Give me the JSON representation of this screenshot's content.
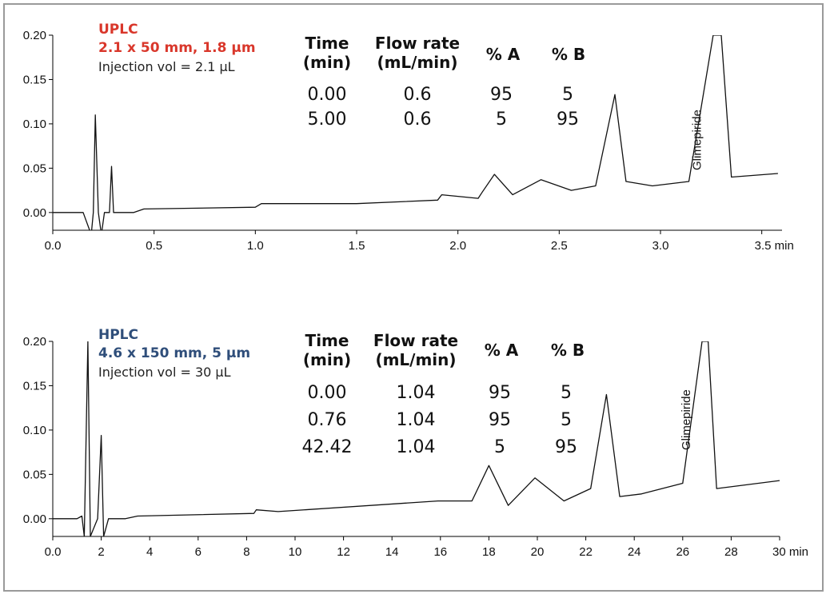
{
  "chart_data": [
    {
      "type": "line",
      "title": "UPLC",
      "subtitle": "2.1 x 50 mm, 1.8 µm",
      "injection": "Injection vol = 2.1 µL",
      "title_color": "#d9372b",
      "x_unit": "min",
      "xlim": [
        0,
        3.6
      ],
      "ylim": [
        -0.02,
        0.2
      ],
      "x_ticks": [
        "0.0",
        "0.5",
        "1.0",
        "1.5",
        "2.0",
        "2.5",
        "3.0",
        "3.5"
      ],
      "y_ticks": [
        "0.00",
        "0.05",
        "0.10",
        "0.15",
        "0.20"
      ],
      "annotation": {
        "text": "Glimepiride",
        "x": 3.2
      },
      "gradient_table": {
        "headers": [
          [
            "Time",
            "(min)"
          ],
          [
            "Flow rate",
            "(mL/min)"
          ],
          [
            "% A",
            ""
          ],
          [
            "% B",
            ""
          ]
        ],
        "rows": [
          [
            "0.00",
            "0.6",
            "95",
            "5"
          ],
          [
            "5.00",
            "0.6",
            "5",
            "95"
          ]
        ]
      },
      "series": [
        {
          "values": [
            [
              0.0,
              0.0
            ],
            [
              0.15,
              0.0
            ],
            [
              0.19,
              -0.025
            ],
            [
              0.2,
              0.0
            ],
            [
              0.21,
              0.11
            ],
            [
              0.225,
              0.0
            ],
            [
              0.24,
              -0.025
            ],
            [
              0.255,
              0.0
            ],
            [
              0.28,
              0.0
            ],
            [
              0.29,
              0.052
            ],
            [
              0.3,
              0.0
            ],
            [
              0.33,
              0.0
            ],
            [
              0.4,
              0.0
            ],
            [
              0.45,
              0.004
            ],
            [
              1.0,
              0.006
            ],
            [
              1.03,
              0.01
            ],
            [
              1.5,
              0.01
            ],
            [
              1.9,
              0.014
            ],
            [
              1.92,
              0.02
            ],
            [
              2.1,
              0.016
            ],
            [
              2.12,
              0.023
            ],
            [
              2.18,
              0.043
            ],
            [
              2.27,
              0.02
            ],
            [
              2.41,
              0.037
            ],
            [
              2.56,
              0.025
            ],
            [
              2.68,
              0.03
            ],
            [
              2.775,
              0.133
            ],
            [
              2.83,
              0.035
            ],
            [
              2.96,
              0.03
            ],
            [
              3.14,
              0.035
            ],
            [
              3.26,
              0.2
            ],
            [
              3.3,
              0.2
            ],
            [
              3.35,
              0.04
            ],
            [
              3.58,
              0.044
            ]
          ]
        }
      ]
    },
    {
      "type": "line",
      "title": "HPLC",
      "subtitle": "4.6 x 150 mm, 5 µm",
      "injection": "Injection vol = 30 µL",
      "title_color": "#2f4e7a",
      "x_unit": "min",
      "xlim": [
        0,
        30
      ],
      "ylim": [
        -0.02,
        0.2
      ],
      "x_ticks": [
        "0.0",
        "2",
        "4",
        "6",
        "8",
        "10",
        "12",
        "14",
        "16",
        "18",
        "20",
        "22",
        "24",
        "26",
        "28",
        "30"
      ],
      "y_ticks": [
        "0.00",
        "0.05",
        "0.10",
        "0.15",
        "0.20"
      ],
      "annotation": {
        "text": "Glimepiride",
        "x": 26.3
      },
      "gradient_table": {
        "headers": [
          [
            "Time",
            "(min)"
          ],
          [
            "Flow rate",
            "(mL/min)"
          ],
          [
            "% A",
            ""
          ],
          [
            "% B",
            ""
          ]
        ],
        "rows": [
          [
            "0.00",
            "1.04",
            "95",
            "5"
          ],
          [
            "0.76",
            "1.04",
            "95",
            "5"
          ],
          [
            "42.42",
            "1.04",
            "5",
            "95"
          ]
        ]
      },
      "series": [
        {
          "values": [
            [
              0.0,
              0.0
            ],
            [
              1.0,
              0.0
            ],
            [
              1.2,
              0.003
            ],
            [
              1.3,
              -0.02
            ],
            [
              1.45,
              0.2
            ],
            [
              1.55,
              -0.02
            ],
            [
              1.85,
              0.0
            ],
            [
              2.0,
              0.094
            ],
            [
              2.1,
              -0.02
            ],
            [
              2.3,
              0.0
            ],
            [
              3.0,
              0.0
            ],
            [
              3.5,
              0.003
            ],
            [
              8.3,
              0.006
            ],
            [
              8.4,
              0.01
            ],
            [
              9.3,
              0.008
            ],
            [
              15.9,
              0.02
            ],
            [
              17.3,
              0.02
            ],
            [
              18.0,
              0.06
            ],
            [
              18.8,
              0.015
            ],
            [
              19.9,
              0.046
            ],
            [
              21.1,
              0.02
            ],
            [
              22.2,
              0.034
            ],
            [
              22.85,
              0.14
            ],
            [
              23.4,
              0.025
            ],
            [
              24.3,
              0.028
            ],
            [
              26.0,
              0.04
            ],
            [
              26.8,
              0.2
            ],
            [
              27.05,
              0.2
            ],
            [
              27.4,
              0.034
            ],
            [
              30.0,
              0.043
            ]
          ]
        }
      ]
    }
  ]
}
